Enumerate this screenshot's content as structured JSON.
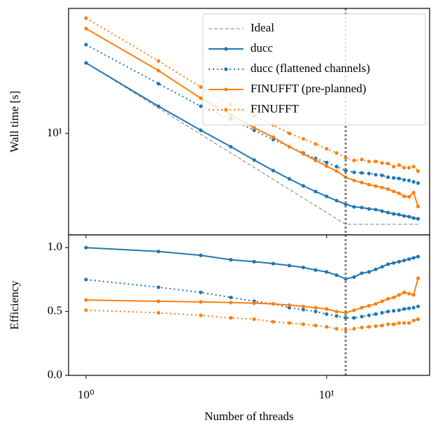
{
  "chart_data": [
    {
      "type": "line",
      "ylabel": "Wall time [s]",
      "log_x": true,
      "log_y": true,
      "xlim": [
        0.846,
        26.8
      ],
      "ylim": [
        2.1,
        68.5
      ],
      "yticks": [
        {
          "value": 10,
          "label": "10¹"
        }
      ],
      "legend": "upper right",
      "vline": 12,
      "x": [
        1,
        2,
        3,
        4,
        5,
        6,
        7,
        8,
        9,
        10,
        11,
        12,
        13,
        14,
        15,
        16,
        17,
        18,
        19,
        20,
        21,
        22,
        23,
        24
      ],
      "series": [
        {
          "name": "Ideal",
          "color": "#808080",
          "style": "dashed",
          "marker": false,
          "values": [
            29.6,
            14.8,
            9.87,
            7.4,
            5.92,
            4.93,
            4.23,
            3.7,
            3.29,
            2.96,
            2.69,
            2.47,
            2.47,
            2.47,
            2.47,
            2.47,
            2.47,
            2.47,
            2.47,
            2.47,
            2.47,
            2.47,
            2.47,
            2.47
          ]
        },
        {
          "name": "ducc",
          "color": "#1f77b4",
          "style": "solid",
          "marker": true,
          "values": [
            29.6,
            15.2,
            10.5,
            8.15,
            6.64,
            5.65,
            4.97,
            4.46,
            4.09,
            3.8,
            3.56,
            3.37,
            3.23,
            3.2,
            3.13,
            3.1,
            3.03,
            2.96,
            2.9,
            2.87,
            2.81,
            2.78,
            2.72,
            2.69
          ]
        },
        {
          "name": "ducc (flattened channels)",
          "color": "#1f77b4",
          "style": "dotted",
          "marker": true,
          "values": [
            39.2,
            21.5,
            15.2,
            12.5,
            10.5,
            9.1,
            8.15,
            7.4,
            6.8,
            6.4,
            6.0,
            5.65,
            5.5,
            5.45,
            5.4,
            5.3,
            5.25,
            5.1,
            5.05,
            5.0,
            4.9,
            4.85,
            4.75,
            4.66
          ]
        },
        {
          "name": "FINUFFT (pre-planned)",
          "color": "#ff7f0e",
          "style": "solid",
          "marker": true,
          "values": [
            50.2,
            26.3,
            17.2,
            13.3,
            10.9,
            9.45,
            8.15,
            7.3,
            6.6,
            6.05,
            5.6,
            5.1,
            4.85,
            4.7,
            4.55,
            4.45,
            4.35,
            4.25,
            4.1,
            3.98,
            3.8,
            3.77,
            4.02,
            3.25
          ]
        },
        {
          "name": "FINUFFT",
          "color": "#ff7f0e",
          "style": "dotted",
          "marker": true,
          "values": [
            59.0,
            30.5,
            20.4,
            15.6,
            13.1,
            11.4,
            10.0,
            9.2,
            8.5,
            7.9,
            7.4,
            6.9,
            6.6,
            6.7,
            6.5,
            6.5,
            6.35,
            6.3,
            6.0,
            6.15,
            5.9,
            5.9,
            6.0,
            5.6
          ]
        }
      ]
    },
    {
      "type": "line",
      "xlabel": "Number of threads",
      "ylabel": "Efficiency",
      "log_x": true,
      "log_y": false,
      "xlim": [
        0.846,
        26.8
      ],
      "ylim": [
        0,
        1.1
      ],
      "xticks": [
        {
          "value": 1,
          "label": "10⁰"
        },
        {
          "value": 10,
          "label": "10¹"
        }
      ],
      "yticks": [
        {
          "value": 0,
          "label": "0.0"
        },
        0.5,
        {
          "value": 1,
          "label": "1.0"
        }
      ],
      "vline": 12,
      "x": [
        1,
        2,
        3,
        4,
        5,
        6,
        7,
        8,
        9,
        10,
        11,
        12,
        13,
        14,
        15,
        16,
        17,
        18,
        19,
        20,
        21,
        22,
        23,
        24
      ],
      "series": [
        {
          "color": "#1f77b4",
          "style": "solid",
          "marker": true,
          "values": [
            1.0,
            0.97,
            0.94,
            0.905,
            0.89,
            0.875,
            0.86,
            0.845,
            0.825,
            0.81,
            0.785,
            0.755,
            0.77,
            0.8,
            0.81,
            0.83,
            0.85,
            0.87,
            0.88,
            0.89,
            0.9,
            0.91,
            0.92,
            0.93
          ]
        },
        {
          "color": "#1f77b4",
          "style": "dotted",
          "marker": true,
          "values": [
            0.75,
            0.69,
            0.65,
            0.61,
            0.58,
            0.56,
            0.53,
            0.515,
            0.5,
            0.48,
            0.465,
            0.45,
            0.45,
            0.46,
            0.47,
            0.48,
            0.49,
            0.5,
            0.505,
            0.51,
            0.52,
            0.525,
            0.53,
            0.54
          ]
        },
        {
          "color": "#ff7f0e",
          "style": "solid",
          "marker": true,
          "values": [
            0.59,
            0.58,
            0.575,
            0.57,
            0.565,
            0.56,
            0.55,
            0.54,
            0.53,
            0.52,
            0.5,
            0.49,
            0.51,
            0.53,
            0.545,
            0.56,
            0.58,
            0.6,
            0.61,
            0.63,
            0.65,
            0.64,
            0.63,
            0.76
          ]
        },
        {
          "color": "#ff7f0e",
          "style": "dotted",
          "marker": true,
          "values": [
            0.51,
            0.49,
            0.47,
            0.45,
            0.44,
            0.42,
            0.41,
            0.4,
            0.39,
            0.38,
            0.365,
            0.355,
            0.365,
            0.375,
            0.38,
            0.385,
            0.39,
            0.4,
            0.4,
            0.41,
            0.41,
            0.41,
            0.43,
            0.44
          ]
        }
      ]
    }
  ]
}
